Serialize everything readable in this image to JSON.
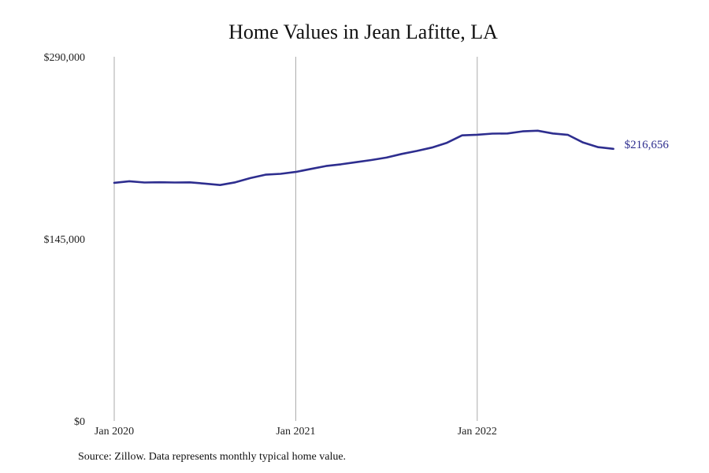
{
  "chart_data": {
    "type": "line",
    "title": "Home Values in Jean Lafitte, LA",
    "xlabel": "",
    "ylabel": "",
    "ylim": [
      0,
      290000
    ],
    "y_ticks": [
      {
        "value": 0,
        "label": "$0"
      },
      {
        "value": 145000,
        "label": "$145,000"
      },
      {
        "value": 290000,
        "label": "$290,000"
      }
    ],
    "x_ticks": [
      {
        "index": 0,
        "label": "Jan 2020"
      },
      {
        "index": 12,
        "label": "Jan 2021"
      },
      {
        "index": 24,
        "label": "Jan 2022"
      }
    ],
    "grid": "vertical lines at x ticks",
    "series": [
      {
        "color": "#2e2e8f",
        "end_label": "$216,656",
        "x": [
          "2020-01",
          "2020-02",
          "2020-03",
          "2020-04",
          "2020-05",
          "2020-06",
          "2020-07",
          "2020-08",
          "2020-09",
          "2020-10",
          "2020-11",
          "2020-12",
          "2021-01",
          "2021-02",
          "2021-03",
          "2021-04",
          "2021-05",
          "2021-06",
          "2021-07",
          "2021-08",
          "2021-09",
          "2021-10",
          "2021-11",
          "2021-12",
          "2022-01",
          "2022-02",
          "2022-03",
          "2022-04",
          "2022-05",
          "2022-06",
          "2022-07",
          "2022-08",
          "2022-09",
          "2022-10"
        ],
        "values": [
          189600,
          190900,
          189900,
          190100,
          189900,
          190000,
          189000,
          187900,
          190000,
          193400,
          196100,
          196800,
          198300,
          200700,
          203000,
          204400,
          206100,
          207800,
          209700,
          212600,
          215000,
          217700,
          221500,
          227400,
          227900,
          228800,
          228900,
          230600,
          231100,
          228900,
          227800,
          221700,
          218000,
          216656
        ]
      }
    ]
  },
  "footer": {
    "source": "Source: Zillow. Data represents monthly typical home value."
  }
}
